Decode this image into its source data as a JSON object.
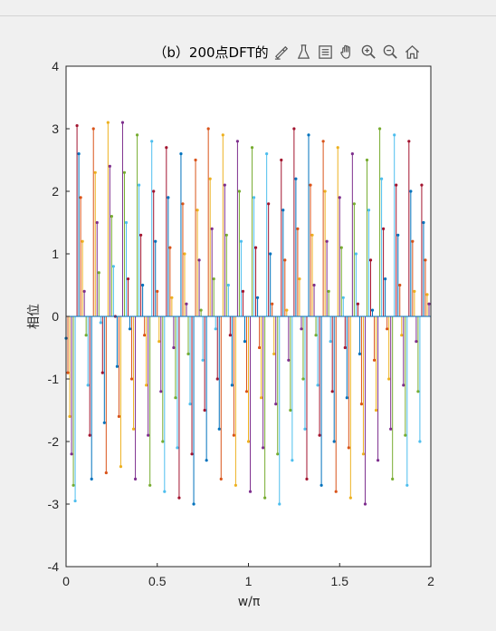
{
  "toolbar": {
    "icons": [
      "brush-icon",
      "data-tip-icon",
      "legend-icon",
      "pan-hand-icon",
      "zoom-in-icon",
      "zoom-out-icon",
      "home-icon"
    ]
  },
  "chart_data": {
    "type": "stem",
    "title": "（b）200点DFT的",
    "xlabel": "w/π",
    "ylabel": "相位",
    "xlim": [
      0,
      2
    ],
    "ylim": [
      -4,
      4
    ],
    "xticks": [
      "0",
      "0.5",
      "1",
      "1.5",
      "2"
    ],
    "yticks": [
      "4",
      "3",
      "2",
      "1",
      "0",
      "-1",
      "-2",
      "-3",
      "-4"
    ],
    "grid": false,
    "num_points": 200,
    "series_colors": [
      "#0072bd",
      "#d95319",
      "#edb120",
      "#7e2f8e",
      "#77ac30",
      "#4dbeee",
      "#a2142f"
    ],
    "series": [
      {
        "values": [
          -0.35,
          -0.9,
          -1.6,
          -2.2,
          -2.7,
          -2.95,
          3.05,
          2.6,
          1.9,
          1.2,
          0.4,
          -0.3,
          -1.1,
          -1.9,
          -2.6,
          3.0,
          2.3,
          1.5,
          0.7,
          -0.1,
          -0.9,
          -1.7,
          -2.5,
          3.1,
          2.4,
          1.6,
          0.8,
          0.0,
          -0.8,
          -1.6,
          -2.4,
          3.1,
          2.3,
          1.5,
          0.6,
          -0.2,
          -1.0,
          -1.8,
          -2.6,
          2.9,
          2.1,
          1.3,
          0.5,
          -0.3,
          -1.1,
          -1.9,
          -2.7,
          2.8,
          2.0,
          1.2,
          0.4,
          -0.4,
          -1.2,
          -2.0,
          -2.8,
          2.7,
          1.9,
          1.1,
          0.3,
          -0.5,
          -1.3,
          -2.1,
          -2.9,
          2.6,
          1.8,
          1.0,
          0.2,
          -0.6,
          -1.4,
          -2.2,
          -3.0,
          2.5,
          1.7,
          0.9,
          0.1,
          -0.7,
          -1.5,
          -2.3,
          3.0,
          2.2,
          1.4,
          0.6,
          -0.2,
          -1.0,
          -1.8,
          -2.6,
          2.9,
          2.1,
          1.3,
          0.5,
          -0.3,
          -1.1,
          -1.9,
          -2.7,
          2.8,
          2.0,
          1.2,
          0.4,
          -0.4,
          -1.2,
          -2.0,
          -2.8,
          2.7,
          1.9,
          1.1,
          0.3,
          -0.5,
          -1.3,
          -2.1,
          -2.9,
          2.6,
          1.8,
          1.0,
          0.2,
          -0.6,
          -1.4,
          -2.2,
          -3.0,
          2.5,
          1.7,
          0.9,
          0.1,
          -0.7,
          -1.5,
          -2.3,
          3.0,
          2.2,
          1.4,
          0.6,
          -0.2,
          -1.0,
          -1.8,
          -2.6,
          2.9,
          2.1,
          1.3,
          0.5,
          -0.3,
          -1.1,
          -1.9,
          -2.7,
          2.8,
          2.0,
          1.2,
          0.4,
          -0.4,
          -1.2,
          -2.0,
          -2.8,
          2.7,
          1.9,
          1.1,
          0.3,
          -0.5,
          -1.3,
          -2.1,
          -2.9,
          2.6,
          1.8,
          1.0,
          0.2,
          -0.6,
          -1.4,
          -2.2,
          -3.0,
          2.5,
          1.7,
          0.9,
          0.1,
          -0.7,
          -1.5,
          -2.3,
          3.0,
          2.2,
          1.4,
          0.6,
          -0.2,
          -1.0,
          -1.8,
          -2.6,
          2.9,
          2.1,
          1.3,
          0.5,
          -0.3,
          -1.1,
          -1.9,
          -2.7,
          2.8,
          2.0,
          1.2,
          0.4,
          -0.4,
          -1.2,
          -2.0,
          2.1,
          1.5,
          0.9,
          0.35,
          0.2
        ]
      }
    ]
  }
}
